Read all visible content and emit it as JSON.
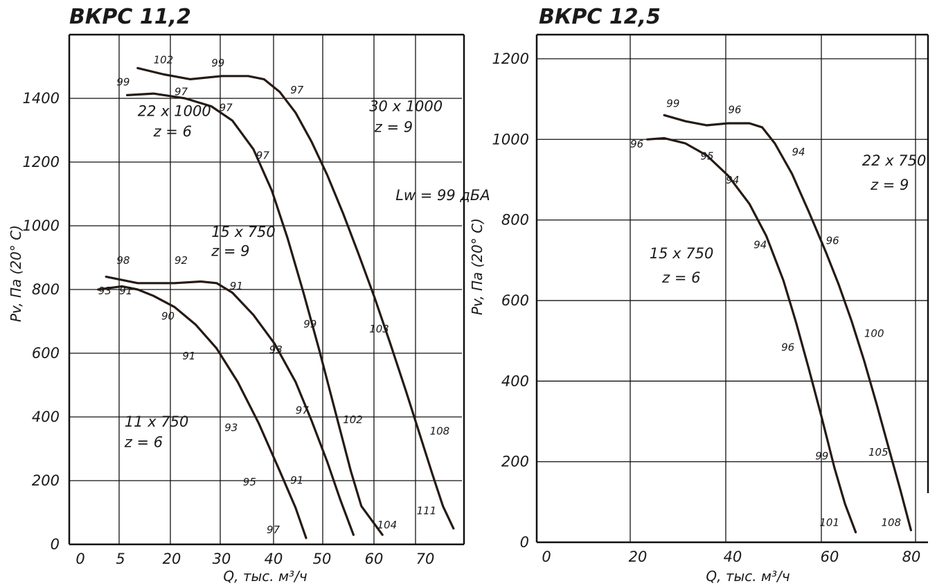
{
  "chart_data": [
    {
      "type": "line",
      "title": "ВКРС 11,2",
      "xlabel": "Q, тыс. м³/ч",
      "ylabel": "Pv, Па (20° С)",
      "x_tick_labels": [
        "0",
        "5",
        "20",
        "30",
        "40",
        "50",
        "60",
        "70"
      ],
      "y_ticks": [
        0,
        200,
        400,
        600,
        800,
        1000,
        1200,
        1400
      ],
      "xlim": [
        2,
        77
      ],
      "ylim": [
        0,
        1600
      ],
      "grid": true,
      "note": "Lw = 99 дБА",
      "series": [
        {
          "name": "11 x 750 z = 6",
          "name_lines": [
            "11 x 750",
            "z = 6"
          ],
          "label_pos": [
            12.5,
            370,
            12.5,
            305
          ],
          "points": [
            [
              7.5,
              800
            ],
            [
              12,
              810
            ],
            [
              15,
              800
            ],
            [
              18,
              780
            ],
            [
              22,
              745
            ],
            [
              26,
              690
            ],
            [
              30,
              615
            ],
            [
              34,
              510
            ],
            [
              38,
              380
            ],
            [
              42,
              230
            ],
            [
              45,
              115
            ],
            [
              47,
              20
            ]
          ],
          "noise": [
            {
              "text": "93",
              "x": 7.5,
              "y": 785
            },
            {
              "text": "91",
              "x": 11.5,
              "y": 785
            },
            {
              "text": "90",
              "x": 19.5,
              "y": 705
            },
            {
              "text": "91",
              "x": 23.5,
              "y": 580
            },
            {
              "text": "93",
              "x": 31.5,
              "y": 355
            },
            {
              "text": "95",
              "x": 35,
              "y": 185
            },
            {
              "text": "97",
              "x": 39.5,
              "y": 35
            }
          ]
        },
        {
          "name": "15 x 750 z = 9",
          "name_lines": [
            "15 x 750",
            "z = 9"
          ],
          "label_pos": [
            29,
            965,
            29,
            905
          ],
          "points": [
            [
              9,
              840
            ],
            [
              15,
              820
            ],
            [
              22,
              820
            ],
            [
              27,
              825
            ],
            [
              30,
              820
            ],
            [
              33,
              790
            ],
            [
              37,
              720
            ],
            [
              41,
              630
            ],
            [
              45,
              510
            ],
            [
              48,
              390
            ],
            [
              51,
              260
            ],
            [
              53.5,
              140
            ],
            [
              56,
              30
            ]
          ],
          "noise": [
            {
              "text": "98",
              "x": 11,
              "y": 880
            },
            {
              "text": "92",
              "x": 22,
              "y": 880
            },
            {
              "text": "91",
              "x": 32.5,
              "y": 800
            },
            {
              "text": "93",
              "x": 40,
              "y": 600
            },
            {
              "text": "97",
              "x": 45,
              "y": 410
            },
            {
              "text": "91",
              "x": 44,
              "y": 190
            }
          ]
        },
        {
          "name": "22 x 1000 z = 6",
          "name_lines": [
            "22 x 1000",
            "z = 6"
          ],
          "label_pos": [
            15,
            1345,
            18,
            1280
          ],
          "points": [
            [
              13,
              1410
            ],
            [
              18,
              1415
            ],
            [
              24,
              1400
            ],
            [
              29,
              1375
            ],
            [
              33,
              1330
            ],
            [
              37,
              1240
            ],
            [
              40.5,
              1110
            ],
            [
              43.5,
              960
            ],
            [
              46.5,
              790
            ],
            [
              49.5,
              610
            ],
            [
              52.5,
              420
            ],
            [
              55.5,
              230
            ],
            [
              57.5,
              120
            ],
            [
              61.5,
              30
            ]
          ],
          "noise": [
            {
              "text": "99",
              "x": 11,
              "y": 1440
            },
            {
              "text": "97",
              "x": 22,
              "y": 1410
            },
            {
              "text": "97",
              "x": 30.5,
              "y": 1360
            },
            {
              "text": "97",
              "x": 37.5,
              "y": 1210
            },
            {
              "text": "99",
              "x": 46.5,
              "y": 680
            },
            {
              "text": "102",
              "x": 54,
              "y": 380
            },
            {
              "text": "104",
              "x": 60.5,
              "y": 50
            }
          ]
        },
        {
          "name": "30 x 1000 z = 9",
          "name_lines": [
            "30 x 1000",
            "z = 9"
          ],
          "label_pos": [
            59,
            1360,
            60,
            1295
          ],
          "points": [
            [
              15,
              1495
            ],
            [
              20,
              1475
            ],
            [
              25,
              1460
            ],
            [
              31,
              1470
            ],
            [
              36,
              1470
            ],
            [
              39,
              1460
            ],
            [
              42,
              1420
            ],
            [
              45,
              1355
            ],
            [
              48,
              1265
            ],
            [
              51,
              1160
            ],
            [
              54,
              1040
            ],
            [
              57,
              910
            ],
            [
              60,
              775
            ],
            [
              63,
              630
            ],
            [
              66,
              480
            ],
            [
              68.5,
              350
            ],
            [
              71,
              220
            ],
            [
              73,
              120
            ],
            [
              75,
              50
            ]
          ],
          "noise": [
            {
              "text": "102",
              "x": 18,
              "y": 1510
            },
            {
              "text": "99",
              "x": 29,
              "y": 1500
            },
            {
              "text": "97",
              "x": 44,
              "y": 1415
            },
            {
              "text": "103",
              "x": 59,
              "y": 665
            },
            {
              "text": "108",
              "x": 70.5,
              "y": 345
            },
            {
              "text": "111",
              "x": 68,
              "y": 95
            }
          ]
        }
      ]
    },
    {
      "type": "line",
      "title": "ВКРС 12,5",
      "xlabel": "Q, тыс. м³/ч",
      "ylabel": "Pv, Па (20° С)",
      "x_tick_labels": [
        "0",
        "20",
        "40",
        "60",
        "80"
      ],
      "y_ticks": [
        0,
        200,
        400,
        600,
        800,
        1000,
        1200
      ],
      "xlim": [
        -10,
        82
      ],
      "ylim": [
        0,
        1260
      ],
      "grid": true,
      "series": [
        {
          "name": "15 x 750 z = 6",
          "name_lines": [
            "15 x 750",
            "z = 6"
          ],
          "label_pos": [
            16.5,
            705,
            19.5,
            645
          ],
          "points": [
            [
              16,
              1000
            ],
            [
              20,
              1003
            ],
            [
              25,
              990
            ],
            [
              30,
              960
            ],
            [
              35,
              910
            ],
            [
              40,
              840
            ],
            [
              44,
              760
            ],
            [
              48,
              650
            ],
            [
              51,
              545
            ],
            [
              54,
              430
            ],
            [
              57,
              310
            ],
            [
              60,
              185
            ],
            [
              62.5,
              95
            ],
            [
              65,
              25
            ]
          ],
          "noise": [
            {
              "text": "96",
              "x": 12,
              "y": 980
            },
            {
              "text": "95",
              "x": 28.5,
              "y": 950
            },
            {
              "text": "94",
              "x": 34.5,
              "y": 890
            },
            {
              "text": "94",
              "x": 41,
              "y": 730
            },
            {
              "text": "96",
              "x": 47.5,
              "y": 475
            },
            {
              "text": "99",
              "x": 55.5,
              "y": 205
            },
            {
              "text": "101",
              "x": 56.5,
              "y": 40
            }
          ]
        },
        {
          "name": "22 x 750 z = 9",
          "name_lines": [
            "22 x 750",
            "z = 9"
          ],
          "label_pos": [
            66.5,
            935,
            68.5,
            875
          ],
          "points": [
            [
              20,
              1060
            ],
            [
              25,
              1045
            ],
            [
              30,
              1035
            ],
            [
              35,
              1040
            ],
            [
              40,
              1040
            ],
            [
              43,
              1030
            ],
            [
              46,
              990
            ],
            [
              50,
              915
            ],
            [
              54,
              820
            ],
            [
              58,
              720
            ],
            [
              61,
              640
            ],
            [
              64,
              550
            ],
            [
              67,
              450
            ],
            [
              70,
              340
            ],
            [
              73,
              225
            ],
            [
              75.5,
              130
            ],
            [
              78,
              30
            ]
          ],
          "noise": [
            {
              "text": "99",
              "x": 20.5,
              "y": 1080
            },
            {
              "text": "96",
              "x": 35,
              "y": 1065
            },
            {
              "text": "94",
              "x": 50,
              "y": 960
            },
            {
              "text": "96",
              "x": 58,
              "y": 740
            },
            {
              "text": "100",
              "x": 67,
              "y": 510
            },
            {
              "text": "105",
              "x": 68,
              "y": 215
            },
            {
              "text": "108",
              "x": 71,
              "y": 40
            }
          ]
        }
      ]
    }
  ]
}
